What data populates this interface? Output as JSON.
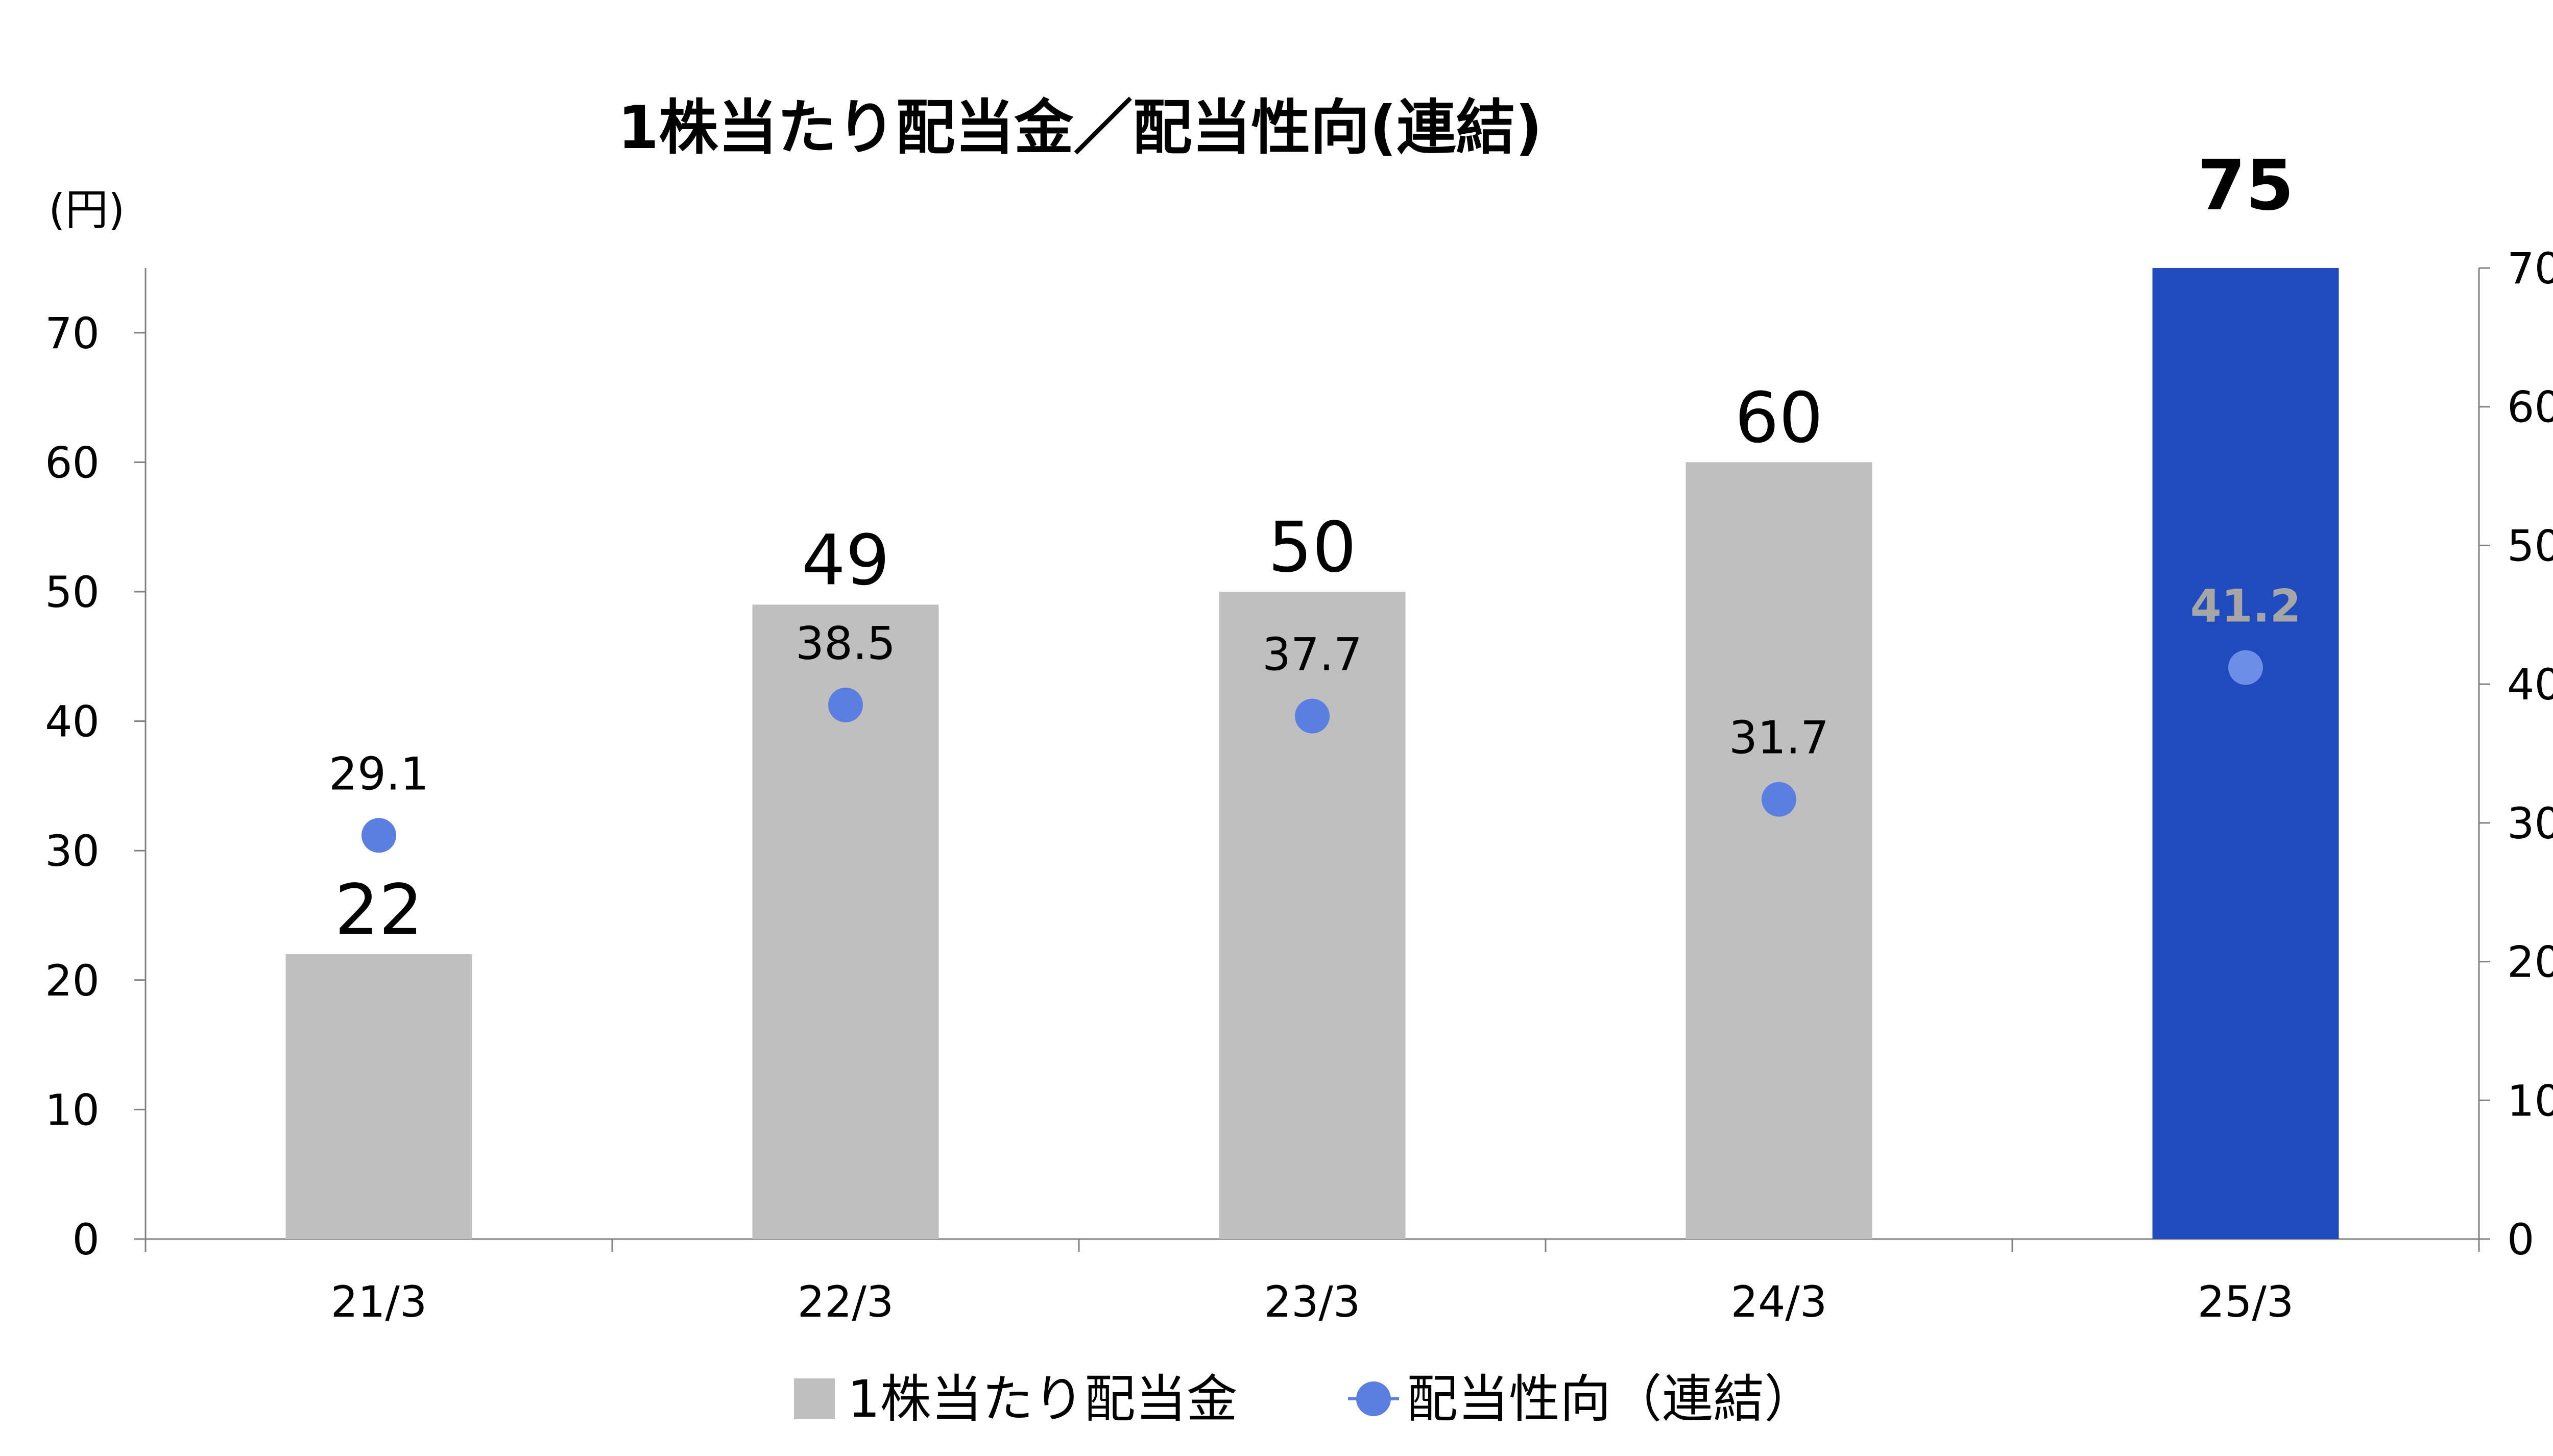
{
  "chart_data": {
    "type": "bar",
    "title": "1株当たり配当金／配当性向(連結)",
    "y_left_unit": "(円)",
    "y_right_unit": "(%)",
    "categories": [
      "21/3",
      "22/3",
      "23/3",
      "24/3",
      "25/3"
    ],
    "y_left_ticks": [
      "0",
      "10",
      "20",
      "30",
      "40",
      "50",
      "60",
      "70"
    ],
    "y_right_ticks": [
      "0",
      "10",
      "20",
      "30",
      "40",
      "50",
      "60",
      "70"
    ],
    "ylim_left": [
      0,
      75
    ],
    "ylim_right": [
      0,
      70
    ],
    "series": [
      {
        "name": "1株当たり配当金",
        "kind": "bar",
        "axis": "left",
        "values": [
          22,
          49,
          50,
          60,
          75
        ],
        "labels": [
          "22",
          "49",
          "50",
          "60",
          "75"
        ],
        "colors": [
          "#bfbfbf",
          "#bfbfbf",
          "#bfbfbf",
          "#bfbfbf",
          "#1f4bbf"
        ]
      },
      {
        "name": "配当性向（連結）",
        "kind": "scatter",
        "axis": "right",
        "values": [
          29.1,
          38.5,
          37.7,
          31.7,
          41.2
        ],
        "labels": [
          "29.1",
          "38.5",
          "37.7",
          "31.7",
          "41.2"
        ],
        "color": "#5b7fe0"
      }
    ],
    "grid": false,
    "legend_position": "bottom-center"
  }
}
